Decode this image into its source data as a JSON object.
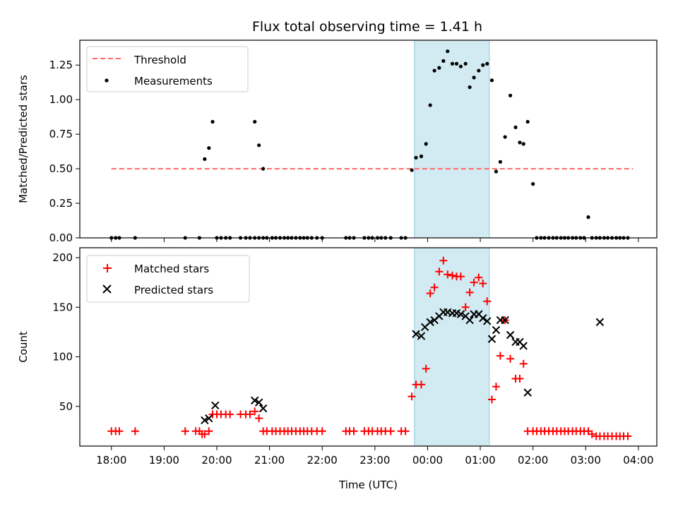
{
  "chart_data": [
    {
      "type": "scatter",
      "title": "Flux total observing time = 1.41 h",
      "ylabel": "Matched/Predicted stars",
      "xlabel": "",
      "x_unit": "hours since 18:00 UTC",
      "xlim": [
        -0.6,
        10.35
      ],
      "ylim": [
        0,
        1.43
      ],
      "yticks": [
        "0.00",
        "0.25",
        "0.50",
        "0.75",
        "1.00",
        "1.25"
      ],
      "shaded_interval": {
        "start": 5.75,
        "end": 7.17,
        "color": "#add8e6"
      },
      "legend": {
        "placement": "upper-left",
        "entries": [
          {
            "label": "Threshold",
            "style": "dashed-line",
            "color": "#ff6666"
          },
          {
            "label": "Measurements",
            "style": "dot",
            "color": "#000000"
          }
        ]
      },
      "series": [
        {
          "name": "Threshold",
          "style": "dashed-line",
          "color": "#ff6666",
          "x": [
            0.0,
            9.9
          ],
          "y": [
            0.5,
            0.5
          ]
        },
        {
          "name": "Measurements",
          "style": "dot",
          "color": "#000000",
          "x": [
            0.0,
            0.08,
            0.15,
            0.45,
            1.4,
            1.67,
            1.77,
            1.85,
            1.92,
            2.0,
            2.08,
            2.17,
            2.25,
            2.45,
            2.55,
            2.63,
            2.72,
            2.8,
            2.88,
            2.95,
            3.05,
            3.12,
            3.2,
            3.28,
            3.35,
            3.42,
            3.5,
            3.58,
            3.65,
            3.72,
            3.8,
            3.9,
            4.0,
            4.45,
            4.52,
            4.6,
            4.8,
            4.88,
            4.95,
            5.05,
            5.12,
            5.2,
            5.3,
            5.5,
            5.58,
            5.7,
            5.78,
            5.88,
            5.97,
            6.05,
            6.13,
            6.22,
            6.3,
            6.38,
            6.47,
            6.55,
            6.63,
            6.72,
            6.8,
            6.88,
            6.97,
            7.05,
            7.13,
            7.22,
            7.3,
            7.38,
            7.47,
            7.57,
            7.67,
            7.75,
            7.82,
            7.9,
            8.0,
            8.07,
            8.15,
            8.22,
            8.3,
            8.38,
            8.45,
            8.53,
            8.6,
            8.67,
            8.75,
            8.82,
            8.9,
            8.97,
            9.05,
            9.12,
            9.2,
            9.27,
            9.35,
            9.42,
            9.5,
            9.58,
            9.65,
            9.72,
            9.8
          ],
          "y": [
            0,
            0,
            0,
            0,
            0,
            0,
            0.57,
            0.65,
            0.84,
            0,
            0,
            0,
            0,
            0,
            0,
            0,
            0,
            0,
            0,
            0,
            0,
            0,
            0,
            0,
            0,
            0,
            0,
            0,
            0,
            0,
            0,
            0,
            0,
            0,
            0,
            0,
            0,
            0,
            0,
            0,
            0,
            0,
            0,
            0,
            0,
            0.49,
            0.58,
            0.59,
            0.68,
            0.96,
            1.21,
            1.23,
            1.28,
            1.35,
            1.26,
            1.26,
            1.24,
            1.26,
            1.09,
            1.16,
            1.21,
            1.25,
            1.26,
            1.14,
            0.48,
            0.55,
            0.73,
            1.03,
            0.8,
            0.69,
            0.68,
            0.84,
            0.39,
            0,
            0,
            0,
            0,
            0,
            0,
            0,
            0,
            0,
            0,
            0,
            0,
            0,
            0.15,
            0,
            0,
            0,
            0,
            0,
            0,
            0,
            0,
            0,
            0
          ],
          "extra_points": [
            {
              "x": 2.72,
              "y": 0.84
            },
            {
              "x": 2.8,
              "y": 0.67
            },
            {
              "x": 2.88,
              "y": 0.5
            }
          ]
        }
      ]
    },
    {
      "type": "scatter",
      "title": "",
      "xlabel": "Time (UTC)",
      "ylabel": "Count",
      "x_unit": "hours since 18:00 UTC",
      "xlim": [
        -0.6,
        10.35
      ],
      "ylim": [
        10,
        210
      ],
      "xticks": [
        "18:00",
        "19:00",
        "20:00",
        "21:00",
        "22:00",
        "23:00",
        "00:00",
        "01:00",
        "02:00",
        "03:00",
        "04:00"
      ],
      "yticks": [
        "50",
        "100",
        "150",
        "200"
      ],
      "shaded_interval": {
        "start": 5.75,
        "end": 7.17,
        "color": "#add8e6"
      },
      "legend": {
        "placement": "upper-left",
        "entries": [
          {
            "label": "Matched stars",
            "style": "plus",
            "color": "#ff0000"
          },
          {
            "label": "Predicted stars",
            "style": "x",
            "color": "#000000"
          }
        ]
      },
      "series": [
        {
          "name": "Matched stars",
          "style": "plus",
          "color": "#ff0000",
          "x": [
            0.0,
            0.08,
            0.15,
            0.45,
            1.4,
            1.6,
            1.67,
            1.72,
            1.77,
            1.85,
            1.92,
            2.0,
            2.08,
            2.17,
            2.25,
            2.45,
            2.55,
            2.63,
            2.72,
            2.8,
            2.88,
            2.95,
            3.05,
            3.12,
            3.2,
            3.28,
            3.35,
            3.42,
            3.5,
            3.58,
            3.65,
            3.72,
            3.8,
            3.9,
            4.0,
            4.45,
            4.52,
            4.6,
            4.8,
            4.88,
            4.95,
            5.05,
            5.12,
            5.2,
            5.3,
            5.5,
            5.58,
            5.7,
            5.78,
            5.88,
            5.97,
            6.05,
            6.13,
            6.22,
            6.3,
            6.38,
            6.47,
            6.55,
            6.63,
            6.72,
            6.8,
            6.88,
            6.97,
            7.05,
            7.13,
            7.22,
            7.3,
            7.38,
            7.47,
            7.57,
            7.67,
            7.75,
            7.82,
            7.9,
            8.0,
            8.07,
            8.15,
            8.22,
            8.3,
            8.38,
            8.45,
            8.53,
            8.6,
            8.67,
            8.75,
            8.82,
            8.9,
            8.97,
            9.05,
            9.12,
            9.2,
            9.27,
            9.35,
            9.42,
            9.5,
            9.58,
            9.65,
            9.72,
            9.8
          ],
          "y": [
            25,
            25,
            25,
            25,
            25,
            25,
            25,
            22,
            22,
            25,
            42,
            42,
            42,
            42,
            42,
            42,
            42,
            42,
            45,
            38,
            25,
            25,
            25,
            25,
            25,
            25,
            25,
            25,
            25,
            25,
            25,
            25,
            25,
            25,
            25,
            25,
            25,
            25,
            25,
            25,
            25,
            25,
            25,
            25,
            25,
            25,
            25,
            60,
            72,
            72,
            88,
            164,
            170,
            186,
            197,
            183,
            182,
            181,
            181,
            150,
            165,
            175,
            180,
            174,
            156,
            57,
            70,
            101,
            137,
            98,
            78,
            78,
            93,
            25,
            25,
            25,
            25,
            25,
            25,
            25,
            25,
            25,
            25,
            25,
            25,
            25,
            25,
            25,
            25,
            22,
            20,
            20,
            20,
            20,
            20,
            20,
            20,
            20,
            20
          ]
        },
        {
          "name": "Predicted stars",
          "style": "x",
          "color": "#000000",
          "x": [
            1.77,
            1.85,
            1.97,
            2.72,
            2.8,
            2.88,
            5.78,
            5.88,
            5.95,
            6.05,
            6.13,
            6.22,
            6.3,
            6.38,
            6.47,
            6.55,
            6.63,
            6.72,
            6.8,
            6.88,
            6.97,
            7.05,
            7.13,
            7.22,
            7.3,
            7.38,
            7.47,
            7.57,
            7.67,
            7.75,
            7.82,
            7.9,
            9.27
          ],
          "y": [
            36,
            38,
            51,
            56,
            54,
            48,
            123,
            121,
            130,
            135,
            137,
            141,
            145,
            145,
            144,
            144,
            143,
            141,
            137,
            143,
            143,
            139,
            136,
            118,
            127,
            137,
            137,
            122,
            115,
            115,
            111,
            64,
            135
          ]
        }
      ]
    }
  ]
}
